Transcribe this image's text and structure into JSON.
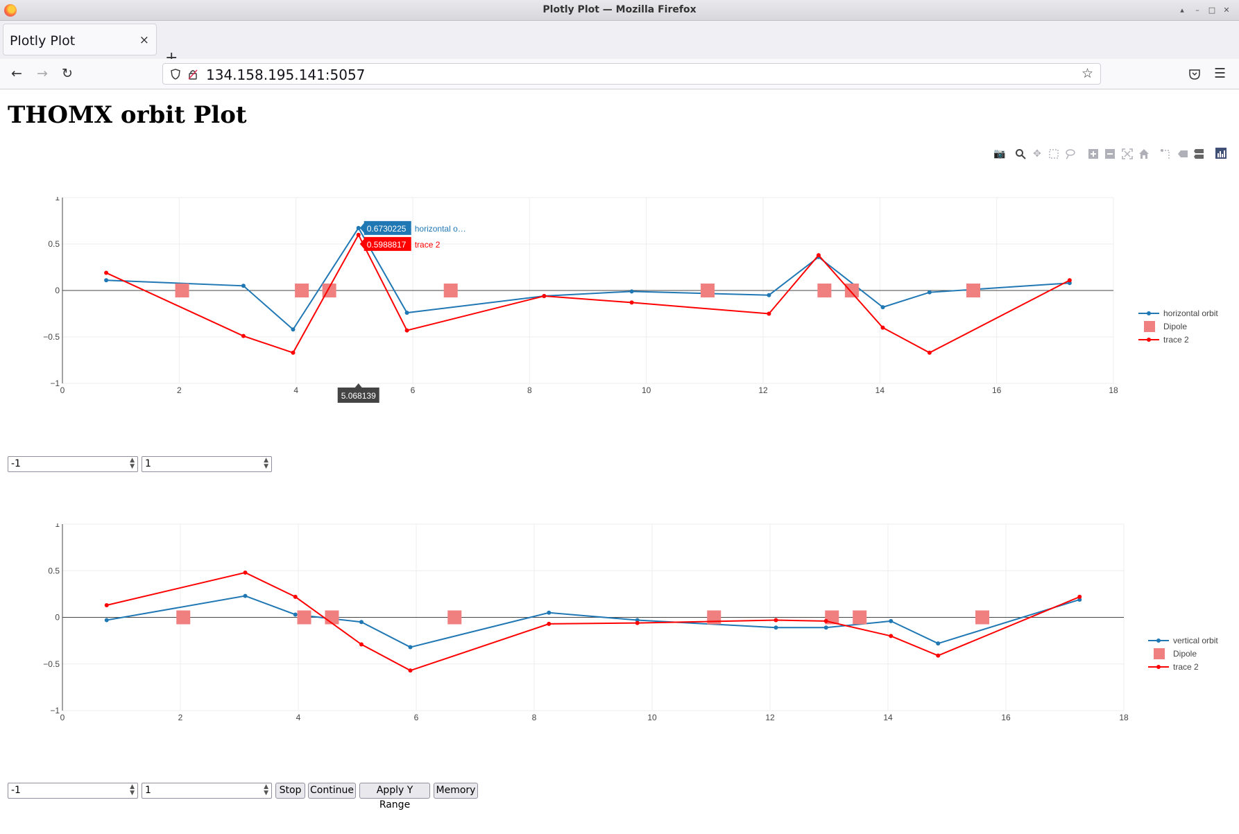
{
  "window": {
    "title": "Plotly Plot — Mozilla Firefox"
  },
  "tab": {
    "label": "Plotly Plot",
    "close": "×",
    "new": "+"
  },
  "nav": {
    "url": "134.158.195.141:5057"
  },
  "page": {
    "heading": "THOMX orbit Plot"
  },
  "modebar_icons": [
    "camera-icon",
    "zoom-icon",
    "pan-icon",
    "box-select-icon",
    "lasso-select-icon",
    "zoom-in-icon",
    "zoom-out-icon",
    "autoscale-icon",
    "reset-axes-icon",
    "spike-lines-icon",
    "hover-closest-icon",
    "hover-compare-icon",
    "plotly-logo-icon"
  ],
  "colors": {
    "blue": "#1f77b4",
    "red": "#ff0000",
    "dipole": "#f08080"
  },
  "chart_data": [
    {
      "type": "line",
      "xlim": [
        0,
        18
      ],
      "ylim": [
        -1,
        1
      ],
      "xticks": [
        "0",
        "2",
        "4",
        "6",
        "8",
        "10",
        "12",
        "14",
        "16",
        "18"
      ],
      "yticks": [
        "−1",
        "−0.5",
        "0",
        "0.5",
        "1"
      ],
      "legend": [
        "horizontal orbit",
        "Dipole",
        "trace 2"
      ],
      "legend_position": "top-right",
      "series": [
        {
          "name": "horizontal orbit",
          "x": [
            0.75,
            3.1,
            3.95,
            5.07,
            5.9,
            8.25,
            9.75,
            12.1,
            12.95,
            14.05,
            14.85,
            17.25
          ],
          "y": [
            0.11,
            0.05,
            -0.42,
            0.673,
            -0.24,
            -0.06,
            -0.01,
            -0.05,
            0.36,
            -0.18,
            -0.02,
            0.08
          ]
        },
        {
          "name": "Dipole",
          "x": [
            2.05,
            4.1,
            4.57,
            6.65,
            11.05,
            13.05,
            13.52,
            15.6
          ],
          "y": [
            0,
            0,
            0,
            0,
            0,
            0,
            0,
            0
          ]
        },
        {
          "name": "trace 2",
          "x": [
            0.75,
            3.1,
            3.95,
            5.07,
            5.9,
            8.25,
            9.75,
            12.1,
            12.95,
            14.05,
            14.85,
            17.25
          ],
          "y": [
            0.19,
            -0.49,
            -0.67,
            0.599,
            -0.43,
            -0.06,
            -0.13,
            -0.25,
            0.38,
            -0.4,
            -0.67,
            0.11
          ]
        }
      ],
      "hover": {
        "x_label": "5.068139",
        "blue_value": "0.6730225",
        "blue_name": "horizontal o…",
        "red_value": "0.5988817",
        "red_name": "trace 2"
      }
    },
    {
      "type": "line",
      "xlim": [
        0,
        18
      ],
      "ylim": [
        -1,
        1
      ],
      "xticks": [
        "0",
        "2",
        "4",
        "6",
        "8",
        "10",
        "12",
        "14",
        "16",
        "18"
      ],
      "yticks": [
        "−1",
        "−0.5",
        "0",
        "0.5",
        "1"
      ],
      "legend": [
        "vertical orbit",
        "Dipole",
        "trace 2"
      ],
      "legend_position": "top-right",
      "series": [
        {
          "name": "vertical orbit",
          "x": [
            0.75,
            3.1,
            3.95,
            5.07,
            5.9,
            8.25,
            9.75,
            12.1,
            12.95,
            14.05,
            14.85,
            17.25
          ],
          "y": [
            -0.03,
            0.23,
            0.03,
            -0.05,
            -0.32,
            0.05,
            -0.03,
            -0.11,
            -0.11,
            -0.04,
            -0.28,
            0.19
          ]
        },
        {
          "name": "Dipole",
          "x": [
            2.05,
            4.1,
            4.57,
            6.65,
            11.05,
            13.05,
            13.52,
            15.6
          ],
          "y": [
            0,
            0,
            0,
            0,
            0,
            0,
            0,
            0
          ]
        },
        {
          "name": "trace 2",
          "x": [
            0.75,
            3.1,
            3.95,
            5.07,
            5.9,
            8.25,
            9.75,
            12.1,
            12.95,
            14.05,
            14.85,
            17.25
          ],
          "y": [
            0.13,
            0.48,
            0.22,
            -0.29,
            -0.57,
            -0.07,
            -0.06,
            -0.03,
            -0.04,
            -0.2,
            -0.41,
            0.22
          ]
        }
      ]
    }
  ],
  "controls1": {
    "ymin": "-1",
    "ymax": "1"
  },
  "controls2": {
    "ymin": "-1",
    "ymax": "1",
    "stop": "Stop",
    "continue": "Continue",
    "apply": "Apply Y Range",
    "memory": "Memory"
  }
}
